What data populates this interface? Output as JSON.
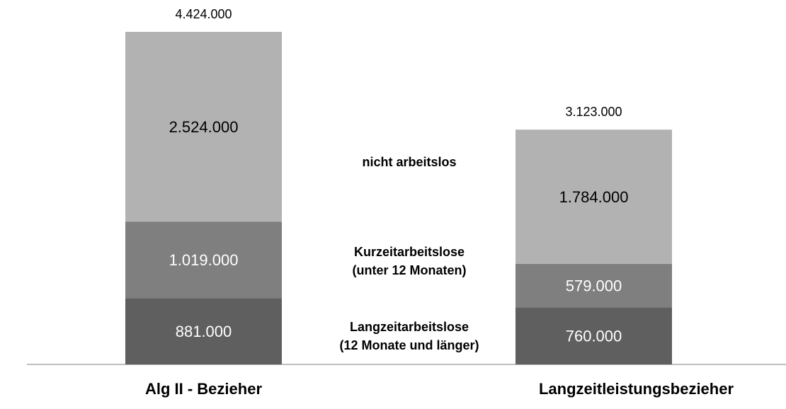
{
  "chart_data": {
    "type": "stacked_bar",
    "categories": [
      "Alg II - Bezieher",
      "Langzeitleistungsbezieher"
    ],
    "series": [
      {
        "name": "Langzeitarbeitslose (12 Monate und länger)",
        "color": "#5f5f5f",
        "values": [
          881000,
          760000
        ],
        "value_labels": [
          "881.000",
          "760.000"
        ]
      },
      {
        "name": "Kurzeitarbeitslose (unter 12 Monaten)",
        "color": "#7f7f7f",
        "values": [
          1019000,
          579000
        ],
        "value_labels": [
          "1.019.000",
          "579.000"
        ]
      },
      {
        "name": "nicht arbeitslos",
        "color": "#b2b2b2",
        "values": [
          2524000,
          1784000
        ],
        "value_labels": [
          "2.524.000",
          "1.784.000"
        ]
      }
    ],
    "totals": [
      4424000,
      3123000
    ],
    "total_labels": [
      "4.424.000",
      "3.123.000"
    ]
  }
}
